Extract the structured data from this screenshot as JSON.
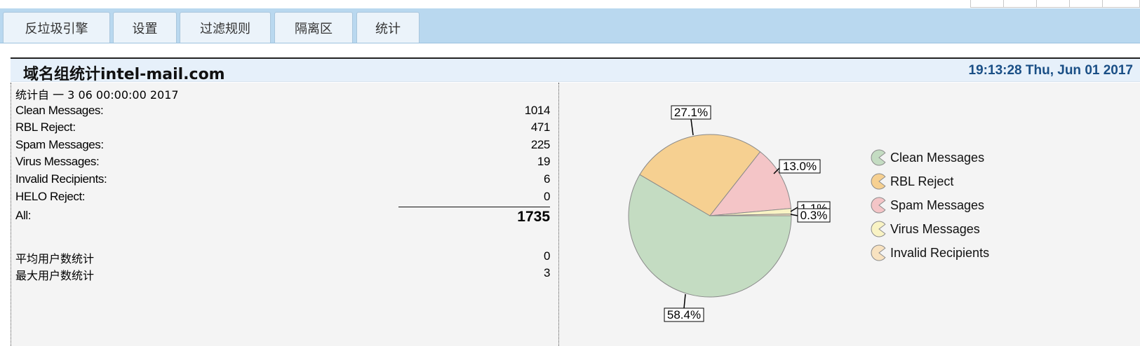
{
  "tabs": [
    {
      "label": "反垃圾引擎"
    },
    {
      "label": "设置"
    },
    {
      "label": "过滤规则"
    },
    {
      "label": "隔离区"
    },
    {
      "label": "统计"
    }
  ],
  "header": {
    "title": "域名组统计intel-mail.com",
    "datetime": "19:13:28 Thu, Jun 01 2017"
  },
  "stats": {
    "since": "统计自 一 3 06 00:00:00 2017",
    "rows": [
      {
        "label": "Clean Messages:",
        "value": "1014"
      },
      {
        "label": "RBL Reject:",
        "value": "471"
      },
      {
        "label": "Spam Messages:",
        "value": "225"
      },
      {
        "label": "Virus Messages:",
        "value": "19"
      },
      {
        "label": "Invalid Recipients:",
        "value": "6"
      },
      {
        "label": "HELO Reject:",
        "value": "0"
      }
    ],
    "total_label": "All:",
    "total_value": "1735",
    "user_rows": [
      {
        "label": "平均用户数统计",
        "value": "0"
      },
      {
        "label": "最大用户数统计",
        "value": "3"
      }
    ]
  },
  "chart_data": {
    "type": "pie",
    "slices": [
      {
        "name": "Clean Messages",
        "value": 1014,
        "label": "58.4%",
        "color": "#c4dcc2"
      },
      {
        "name": "RBL Reject",
        "value": 471,
        "label": "27.1%",
        "color": "#f6d091"
      },
      {
        "name": "Spam Messages",
        "value": 225,
        "label": "13.0%",
        "color": "#f4c5c7"
      },
      {
        "name": "Virus Messages",
        "value": 19,
        "label": "1.1%",
        "color": "#f9f3c4"
      },
      {
        "name": "Invalid Recipients",
        "value": 6,
        "label": "0.3%",
        "color": "#f8e2c0"
      }
    ],
    "legend": [
      "Clean Messages",
      "RBL Reject",
      "Spam Messages",
      "Virus Messages",
      "Invalid Recipients"
    ],
    "legend_position": "right"
  }
}
